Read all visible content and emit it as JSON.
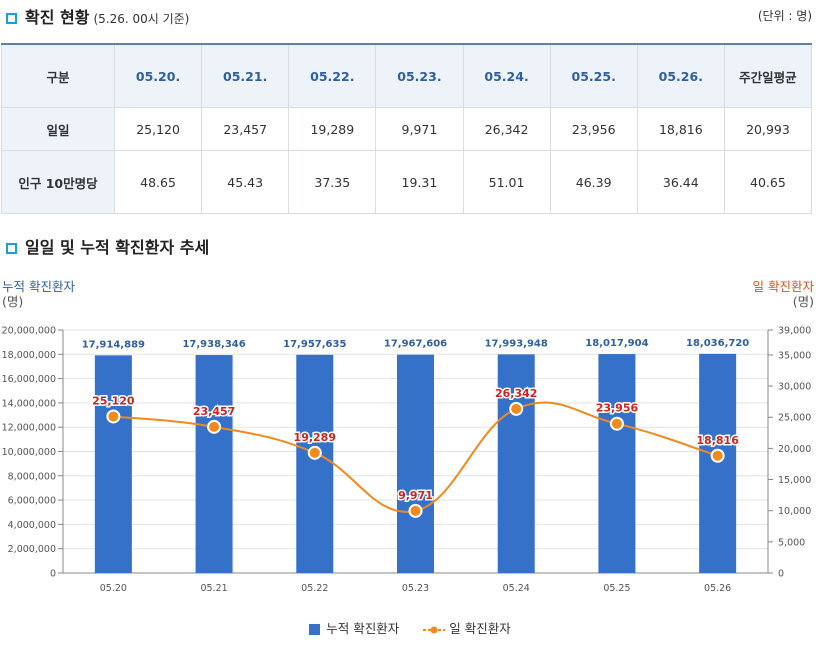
{
  "status_section": {
    "title": "확진 현황",
    "subtitle": "(5.26. 00시 기준)",
    "unit": "(단위 : 명)"
  },
  "table": {
    "headers": [
      "구분",
      "05.20.",
      "05.21.",
      "05.22.",
      "05.23.",
      "05.24.",
      "05.25.",
      "05.26.",
      "주간일평균"
    ],
    "rows": [
      {
        "label": "일일",
        "values": [
          "25,120",
          "23,457",
          "19,289",
          "9,971",
          "26,342",
          "23,956",
          "18,816",
          "20,993"
        ]
      },
      {
        "label": "인구 10만명당",
        "values": [
          "48.65",
          "45.43",
          "37.35",
          "19.31",
          "51.01",
          "46.39",
          "36.44",
          "40.65"
        ]
      }
    ]
  },
  "trend_section": {
    "title": "일일 및 누적 확진환자 추세"
  },
  "chart_data": {
    "type": "bar",
    "categories": [
      "05.20",
      "05.21",
      "05.22",
      "05.23",
      "05.24",
      "05.25",
      "05.26"
    ],
    "series": [
      {
        "name": "누적 확진환자",
        "type": "bar",
        "axis": "left",
        "color": "#3570c9",
        "values": [
          17914889,
          17938346,
          17957635,
          17967606,
          17993948,
          18017904,
          18036720
        ],
        "labels": [
          "17,914,889",
          "17,938,346",
          "17,957,635",
          "17,967,606",
          "17,993,948",
          "18,017,904",
          "18,036,720"
        ]
      },
      {
        "name": "일 확진환자",
        "type": "line",
        "axis": "right",
        "color": "#f08a1e",
        "values": [
          25120,
          23457,
          19289,
          9971,
          26342,
          23956,
          18816
        ],
        "labels": [
          "25,120",
          "23,457",
          "19,289",
          "9,971",
          "26,342",
          "23,956",
          "18,816"
        ]
      }
    ],
    "left_axis": {
      "title": "누적 확진환자",
      "unit": "(명)",
      "min": 0,
      "max": 20000000,
      "ticks": [
        "0",
        "2,000,000",
        "4,000,000",
        "6,000,000",
        "8,000,000",
        "10,000,000",
        "12,000,000",
        "14,000,000",
        "16,000,000",
        "18,000,000",
        "20,000,000"
      ]
    },
    "right_axis": {
      "title": "일 확진환자",
      "unit": "(명)",
      "min": 0,
      "max": 39000,
      "ticks": [
        "0",
        "5,000",
        "10,000",
        "15,000",
        "20,000",
        "25,000",
        "30,000",
        "35,000",
        "39,000"
      ],
      "tick_values": [
        0,
        5000,
        10000,
        15000,
        20000,
        25000,
        30000,
        35000,
        39000
      ]
    },
    "grid": true,
    "legend_position": "bottom"
  }
}
